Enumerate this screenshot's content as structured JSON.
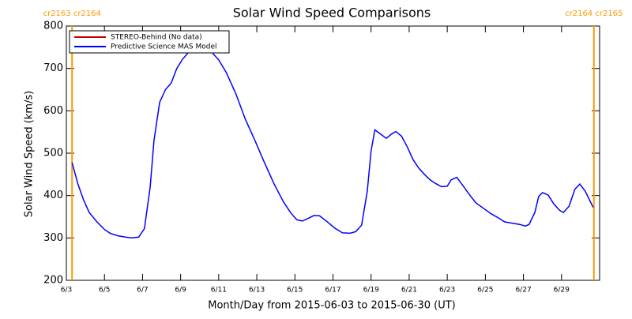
{
  "chart_data": {
    "type": "line",
    "title": "Solar Wind Speed Comparisons",
    "xlabel": "Month/Day from 2015-06-03 to 2015-06-30 (UT)",
    "ylabel": "Solar Wind Speed (km/s)",
    "xlim": [
      3,
      31
    ],
    "xticks": [
      {
        "value": 3,
        "label": "6/3"
      },
      {
        "value": 5,
        "label": "6/5"
      },
      {
        "value": 7,
        "label": "6/7"
      },
      {
        "value": 9,
        "label": "6/9"
      },
      {
        "value": 11,
        "label": "6/11"
      },
      {
        "value": 13,
        "label": "6/13"
      },
      {
        "value": 15,
        "label": "6/15"
      },
      {
        "value": 17,
        "label": "6/17"
      },
      {
        "value": 19,
        "label": "6/19"
      },
      {
        "value": 21,
        "label": "6/21"
      },
      {
        "value": 23,
        "label": "6/23"
      },
      {
        "value": 25,
        "label": "6/25"
      },
      {
        "value": 27,
        "label": "6/27"
      },
      {
        "value": 29,
        "label": "6/29"
      }
    ],
    "ylim": [
      200,
      800
    ],
    "yticks": [
      200,
      300,
      400,
      500,
      600,
      700,
      800
    ],
    "legend": "upper left",
    "boundaries": [
      {
        "x": 3.3,
        "label": "cr2163 cr2164",
        "color": "#ff9900"
      },
      {
        "x": 30.7,
        "label": "cr2164 cr2165",
        "color": "#ff9900"
      }
    ],
    "x": [
      3.3,
      3.6,
      3.9,
      4.2,
      4.6,
      5.0,
      5.3,
      5.7,
      6.1,
      6.4,
      6.8,
      7.1,
      7.4,
      7.6,
      7.9,
      8.2,
      8.5,
      8.8,
      9.1,
      9.4,
      9.8,
      10.2,
      10.6,
      11.0,
      11.4,
      11.9,
      12.4,
      12.9,
      13.4,
      13.9,
      14.4,
      14.8,
      15.1,
      15.4,
      15.7,
      16.0,
      16.3,
      16.7,
      17.1,
      17.5,
      17.9,
      18.2,
      18.5,
      18.8,
      19.0,
      19.2,
      19.5,
      19.8,
      20.1,
      20.3,
      20.6,
      20.9,
      21.2,
      21.5,
      21.8,
      22.1,
      22.4,
      22.7,
      23.0,
      23.2,
      23.5,
      23.8,
      24.2,
      24.5,
      24.9,
      25.3,
      25.7,
      26.0,
      26.4,
      26.8,
      27.1,
      27.3,
      27.6,
      27.8,
      28.0,
      28.3,
      28.6,
      28.9,
      29.1,
      29.4,
      29.7,
      29.96,
      30.25,
      30.66
    ],
    "series": [
      {
        "name": "STEREO-Behind (No data)",
        "color": "#c00000",
        "values": [
          null,
          null,
          null,
          null,
          null,
          null,
          null,
          null,
          null,
          null,
          null,
          null,
          null,
          null,
          null,
          null,
          null,
          null,
          null,
          null,
          null,
          null,
          null,
          null,
          null,
          null,
          null,
          null,
          null,
          null,
          null,
          null,
          null,
          null,
          null,
          null,
          null,
          null,
          null,
          null,
          null,
          null,
          null,
          null,
          null,
          null,
          null,
          null,
          null,
          null,
          null,
          null,
          null,
          null,
          null,
          null,
          null,
          null,
          null,
          null,
          null,
          null,
          null,
          null,
          null,
          null,
          null,
          null,
          null,
          null,
          null,
          null,
          null,
          null,
          null,
          null,
          null,
          null,
          null,
          null,
          null,
          null,
          null,
          null
        ]
      },
      {
        "name": "Predictive Science MAS Model",
        "color": "#0000ff",
        "values": [
          478,
          428,
          390,
          360,
          338,
          320,
          311,
          305,
          302,
          300,
          302,
          322,
          420,
          530,
          620,
          650,
          665,
          700,
          722,
          737,
          745,
          747,
          740,
          720,
          690,
          640,
          580,
          530,
          478,
          428,
          385,
          358,
          343,
          340,
          346,
          353,
          352,
          338,
          323,
          312,
          311,
          315,
          330,
          410,
          505,
          555,
          545,
          535,
          546,
          551,
          540,
          515,
          485,
          465,
          450,
          437,
          428,
          421,
          422,
          437,
          443,
          425,
          400,
          383,
          370,
          357,
          347,
          338,
          335,
          332,
          328,
          332,
          360,
          398,
          407,
          401,
          380,
          365,
          360,
          375,
          415,
          427,
          410,
          372
        ]
      }
    ]
  }
}
